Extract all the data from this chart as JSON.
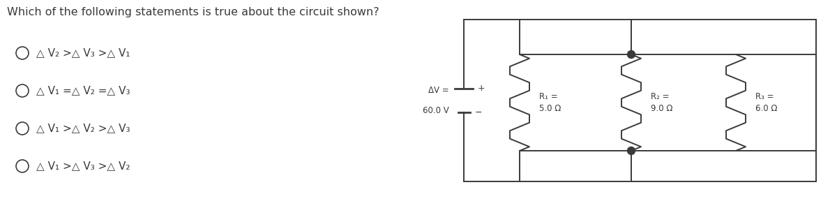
{
  "title": "Which of the following statements is true about the circuit shown?",
  "options": [
    "△ V₂ >△ V₃ >△ V₁",
    "△ V₁ =△ V₂ =△ V₃",
    "△ V₁ >△ V₂ >△ V₃",
    "△ V₁ >△ V₃ >△ V₂"
  ],
  "battery_label_top": "ΔV =",
  "battery_label_bot": "60.0 V",
  "r1_label": "R₁ =\n5.0 Ω",
  "r2_label": "R₂ =\n9.0 Ω",
  "r3_label": "R₃ =\n6.0 Ω",
  "bg_color": "#ffffff",
  "text_color": "#3a3a3a",
  "line_color": "#3a3a3a"
}
